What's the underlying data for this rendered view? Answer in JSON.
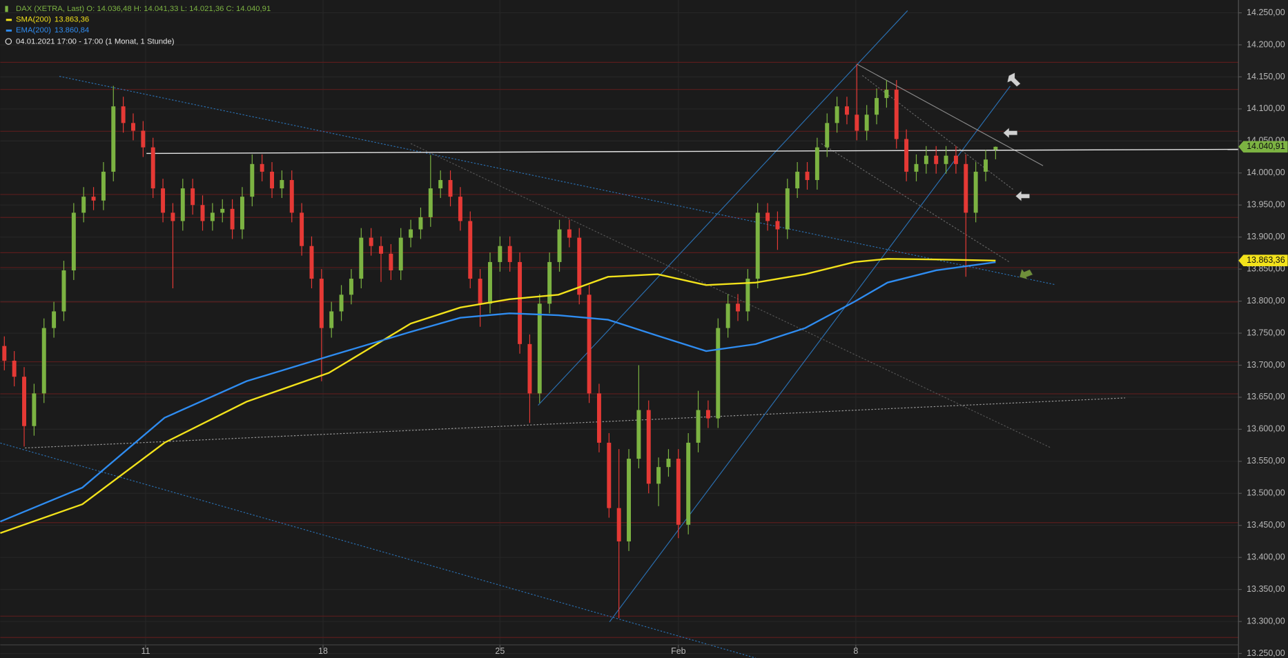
{
  "chart_data": {
    "type": "candlestick",
    "instrument": "DAX (XETRA, Last)",
    "legend_ohlc": "O: 14.036,48   H: 14.041,33   L: 14.021,36   C: 14.040,91",
    "period": "04.01.2021 17:00 - 17:00",
    "period_note": "(1 Monat, 1 Stunde)",
    "last_price_label": "14.040,91",
    "up_color": "#7cb342",
    "down_color": "#e53935",
    "grid": true,
    "xlim": [
      -0.41,
      124.5
    ],
    "ylim": [
      13243,
      14270
    ],
    "xticks": [
      {
        "value": 14.25,
        "label": "11"
      },
      {
        "value": 32.15,
        "label": "18"
      },
      {
        "value": 50.0,
        "label": "25"
      },
      {
        "value": 68.0,
        "label": "Feb"
      },
      {
        "value": 85.9,
        "label": "8"
      }
    ],
    "yticks": [
      {
        "value": 13250,
        "label": "13.250,00"
      },
      {
        "value": 13300,
        "label": "13.300,00"
      },
      {
        "value": 13350,
        "label": "13.350,00"
      },
      {
        "value": 13400,
        "label": "13.400,00"
      },
      {
        "value": 13450,
        "label": "13.450,00"
      },
      {
        "value": 13500,
        "label": "13.500,00"
      },
      {
        "value": 13550,
        "label": "13.550,00"
      },
      {
        "value": 13600,
        "label": "13.600,00"
      },
      {
        "value": 13650,
        "label": "13.650,00"
      },
      {
        "value": 13700,
        "label": "13.700,00"
      },
      {
        "value": 13750,
        "label": "13.750,00"
      },
      {
        "value": 13800,
        "label": "13.800,00"
      },
      {
        "value": 13850,
        "label": "13.850,00"
      },
      {
        "value": 13900,
        "label": "13.900,00"
      },
      {
        "value": 13950,
        "label": "13.950,00"
      },
      {
        "value": 14000,
        "label": "14.000,00"
      },
      {
        "value": 14050,
        "label": "14.050,00"
      },
      {
        "value": 14100,
        "label": "14.100,00"
      },
      {
        "value": 14150,
        "label": "14.150,00"
      },
      {
        "value": 14200,
        "label": "14.200,00"
      },
      {
        "value": 14250,
        "label": "14.250,00"
      }
    ],
    "ohlc": [
      [
        13730,
        13745,
        13692,
        13707
      ],
      [
        13707,
        13722,
        13667,
        13682
      ],
      [
        13682,
        13697,
        13573,
        13605
      ],
      [
        13605,
        13671,
        13590,
        13656
      ],
      [
        13656,
        13773,
        13641,
        13758
      ],
      [
        13758,
        13799,
        13743,
        13784
      ],
      [
        13784,
        13863,
        13769,
        13848
      ],
      [
        13848,
        13953,
        13833,
        13938
      ],
      [
        13938,
        13978,
        13923,
        13963
      ],
      [
        13963,
        13978,
        13942,
        13957
      ],
      [
        13957,
        14017,
        13942,
        14002
      ],
      [
        14002,
        14136,
        13987,
        14104
      ],
      [
        14104,
        14119,
        14063,
        14078
      ],
      [
        14078,
        14093,
        14051,
        14066
      ],
      [
        14066,
        14081,
        14025,
        14040
      ],
      [
        14040,
        14055,
        13961,
        13976
      ],
      [
        13976,
        13991,
        13923,
        13938
      ],
      [
        13938,
        13953,
        13820,
        13925
      ],
      [
        13925,
        13991,
        13910,
        13976
      ],
      [
        13976,
        13991,
        13935,
        13950
      ],
      [
        13950,
        13965,
        13910,
        13925
      ],
      [
        13925,
        13953,
        13910,
        13938
      ],
      [
        13938,
        13959,
        13923,
        13944
      ],
      [
        13944,
        13959,
        13897,
        13912
      ],
      [
        13912,
        13978,
        13897,
        13963
      ],
      [
        13963,
        14029,
        13948,
        14014
      ],
      [
        14014,
        14029,
        13987,
        14002
      ],
      [
        14002,
        14017,
        13961,
        13976
      ],
      [
        13976,
        14004,
        13961,
        13989
      ],
      [
        13989,
        14004,
        13923,
        13938
      ],
      [
        13938,
        13953,
        13871,
        13886
      ],
      [
        13886,
        13901,
        13820,
        13835
      ],
      [
        13835,
        13850,
        13675,
        13758
      ],
      [
        13758,
        13799,
        13743,
        13784
      ],
      [
        13784,
        13825,
        13769,
        13810
      ],
      [
        13810,
        13850,
        13795,
        13835
      ],
      [
        13835,
        13914,
        13820,
        13899
      ],
      [
        13899,
        13914,
        13871,
        13886
      ],
      [
        13886,
        13901,
        13830,
        13874
      ],
      [
        13874,
        13889,
        13833,
        13848
      ],
      [
        13848,
        13914,
        13833,
        13899
      ],
      [
        13899,
        13927,
        13884,
        13912
      ],
      [
        13912,
        13946,
        13897,
        13931
      ],
      [
        13931,
        14028,
        13916,
        13976
      ],
      [
        13976,
        14004,
        13961,
        13989
      ],
      [
        13989,
        14004,
        13948,
        13963
      ],
      [
        13963,
        13978,
        13910,
        13925
      ],
      [
        13925,
        13940,
        13820,
        13835
      ],
      [
        13835,
        13850,
        13760,
        13796
      ],
      [
        13796,
        13876,
        13781,
        13861
      ],
      [
        13861,
        13901,
        13846,
        13886
      ],
      [
        13886,
        13901,
        13846,
        13861
      ],
      [
        13861,
        13876,
        13718,
        13733
      ],
      [
        13733,
        13748,
        13610,
        13656
      ],
      [
        13656,
        13811,
        13641,
        13796
      ],
      [
        13796,
        13876,
        13781,
        13861
      ],
      [
        13861,
        13927,
        13846,
        13912
      ],
      [
        13912,
        13927,
        13884,
        13899
      ],
      [
        13899,
        13914,
        13795,
        13810
      ],
      [
        13810,
        13825,
        13641,
        13656
      ],
      [
        13656,
        13671,
        13564,
        13579
      ],
      [
        13579,
        13594,
        13462,
        13477
      ],
      [
        13477,
        13569,
        13305,
        13425
      ],
      [
        13425,
        13569,
        13410,
        13554
      ],
      [
        13554,
        13700,
        13539,
        13630
      ],
      [
        13630,
        13645,
        13500,
        13515
      ],
      [
        13515,
        13556,
        13480,
        13541
      ],
      [
        13541,
        13569,
        13526,
        13554
      ],
      [
        13554,
        13569,
        13430,
        13451
      ],
      [
        13451,
        13594,
        13436,
        13579
      ],
      [
        13579,
        13660,
        13564,
        13630
      ],
      [
        13630,
        13645,
        13602,
        13617
      ],
      [
        13617,
        13773,
        13602,
        13758
      ],
      [
        13758,
        13811,
        13743,
        13796
      ],
      [
        13796,
        13811,
        13769,
        13784
      ],
      [
        13784,
        13850,
        13769,
        13835
      ],
      [
        13835,
        13953,
        13820,
        13938
      ],
      [
        13938,
        13953,
        13910,
        13925
      ],
      [
        13925,
        13940,
        13880,
        13912
      ],
      [
        13912,
        13991,
        13897,
        13976
      ],
      [
        13976,
        14017,
        13961,
        14002
      ],
      [
        14002,
        14017,
        13974,
        13989
      ],
      [
        13989,
        14055,
        13974,
        14040
      ],
      [
        14040,
        14093,
        14025,
        14078
      ],
      [
        14078,
        14119,
        14063,
        14104
      ],
      [
        14104,
        14119,
        14076,
        14091
      ],
      [
        14091,
        14170,
        14051,
        14066
      ],
      [
        14066,
        14106,
        14051,
        14091
      ],
      [
        14091,
        14132,
        14076,
        14117
      ],
      [
        14117,
        14145,
        14102,
        14130
      ],
      [
        14130,
        14145,
        14038,
        14053
      ],
      [
        14053,
        14068,
        13987,
        14002
      ],
      [
        14002,
        14029,
        13987,
        14014
      ],
      [
        14014,
        14042,
        13999,
        14027
      ],
      [
        14027,
        14042,
        13999,
        14014
      ],
      [
        14014,
        14042,
        13999,
        14027
      ],
      [
        14027,
        14042,
        13999,
        14014
      ],
      [
        14014,
        14029,
        13838,
        13938
      ],
      [
        13938,
        14017,
        13923,
        14002
      ],
      [
        14002,
        14036,
        13987,
        14021
      ],
      [
        14036.48,
        14041.33,
        14021.36,
        14040.91
      ]
    ],
    "ma_x": [
      -0.41,
      7.87,
      16.16,
      24.44,
      32.73,
      41.0,
      46.0,
      50.95,
      55.9,
      60.9,
      65.9,
      70.8,
      75.8,
      80.8,
      85.75,
      89.1,
      94.0,
      100
    ],
    "series": [
      {
        "name": "SMA(200)",
        "color": "#f2e21b",
        "value_label": "13.863,36",
        "values": [
          13438,
          13483,
          13579,
          13643,
          13688,
          13765,
          13790,
          13803,
          13810,
          13838,
          13842,
          13825,
          13829,
          13842,
          13861,
          13866,
          13865,
          13863.36
        ]
      },
      {
        "name": "EMA(200)",
        "color": "#2f8cf0",
        "value_label": "13.860,84",
        "values": [
          13456,
          13509,
          13618,
          13675,
          13714,
          13752,
          13774,
          13781,
          13778,
          13771,
          13746,
          13722,
          13733,
          13758,
          13799,
          13829,
          13848,
          13860.84
        ]
      }
    ]
  }
}
